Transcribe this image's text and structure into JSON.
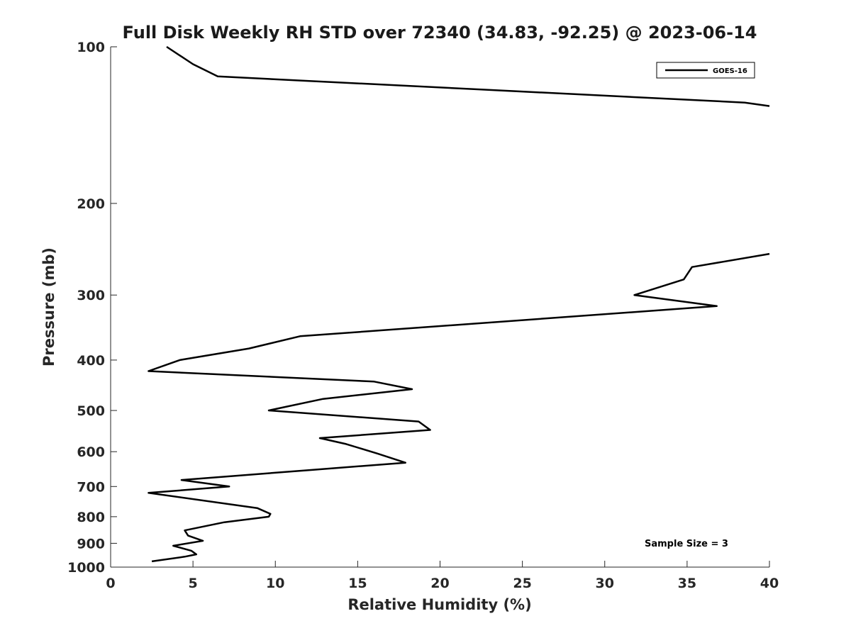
{
  "chart_data": {
    "type": "line",
    "title": "Full Disk Weekly RH STD over 72340 (34.83, -92.25) @ 2023-06-14",
    "xlabel": "Relative Humidity (%)",
    "ylabel": "Pressure (mb)",
    "xlim": [
      0,
      40
    ],
    "ylim": [
      100,
      1000
    ],
    "y_scale": "log",
    "y_reversed": true,
    "x_ticks": [
      0,
      5,
      10,
      15,
      20,
      25,
      30,
      35,
      40
    ],
    "y_ticks": [
      100,
      200,
      300,
      400,
      500,
      600,
      700,
      800,
      900,
      1000
    ],
    "grid": false,
    "legend_position": "top-right",
    "annotation": "Sample Size = 3",
    "series": [
      {
        "name": "GOES-16",
        "color": "#000000",
        "segments": [
          [
            {
              "x": 3.4,
              "y": 100
            },
            {
              "x": 5.0,
              "y": 108
            },
            {
              "x": 6.5,
              "y": 114
            },
            {
              "x": 38.5,
              "y": 128
            },
            {
              "x": 40.0,
              "y": 130
            }
          ],
          [
            {
              "x": 40.0,
              "y": 250
            },
            {
              "x": 35.3,
              "y": 265
            },
            {
              "x": 34.8,
              "y": 280
            },
            {
              "x": 31.8,
              "y": 300
            },
            {
              "x": 36.8,
              "y": 315
            },
            {
              "x": 11.5,
              "y": 360
            },
            {
              "x": 8.4,
              "y": 380
            },
            {
              "x": 4.2,
              "y": 400
            },
            {
              "x": 2.3,
              "y": 420
            },
            {
              "x": 16.0,
              "y": 440
            },
            {
              "x": 18.3,
              "y": 455
            },
            {
              "x": 12.9,
              "y": 475
            },
            {
              "x": 9.6,
              "y": 500
            },
            {
              "x": 18.7,
              "y": 525
            },
            {
              "x": 19.4,
              "y": 545
            },
            {
              "x": 12.7,
              "y": 565
            },
            {
              "x": 14.3,
              "y": 580
            },
            {
              "x": 16.2,
              "y": 605
            },
            {
              "x": 17.9,
              "y": 630
            },
            {
              "x": 12.3,
              "y": 650
            },
            {
              "x": 4.3,
              "y": 680
            },
            {
              "x": 7.2,
              "y": 700
            },
            {
              "x": 2.3,
              "y": 720
            },
            {
              "x": 8.9,
              "y": 770
            },
            {
              "x": 9.7,
              "y": 790
            },
            {
              "x": 9.6,
              "y": 800
            },
            {
              "x": 6.9,
              "y": 820
            },
            {
              "x": 4.5,
              "y": 850
            },
            {
              "x": 4.7,
              "y": 870
            },
            {
              "x": 5.6,
              "y": 890
            },
            {
              "x": 3.8,
              "y": 910
            },
            {
              "x": 4.9,
              "y": 930
            },
            {
              "x": 5.2,
              "y": 945
            },
            {
              "x": 4.5,
              "y": 955
            },
            {
              "x": 2.5,
              "y": 975
            }
          ]
        ]
      }
    ]
  }
}
